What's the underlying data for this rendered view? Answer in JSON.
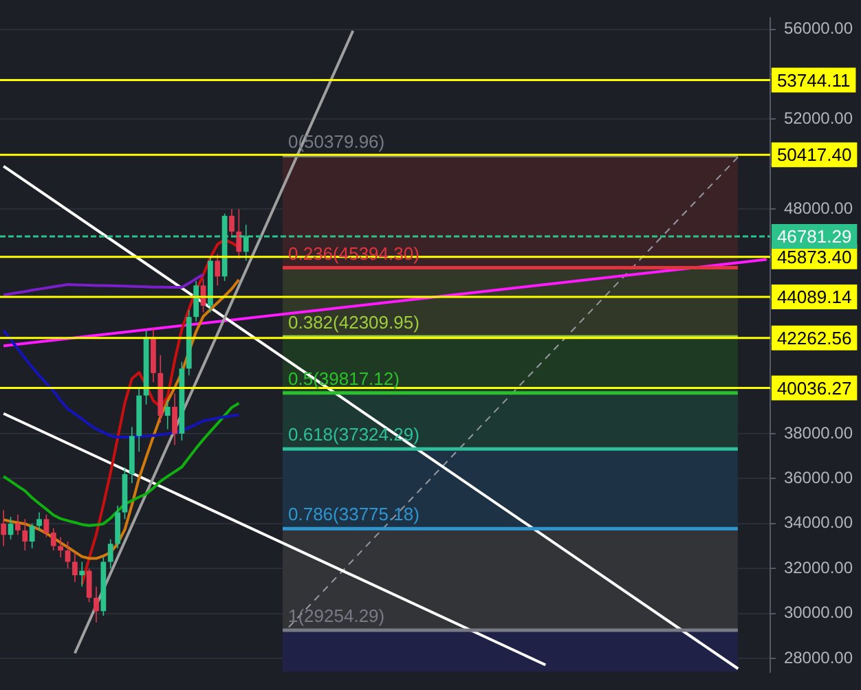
{
  "chart_data": {
    "type": "candlestick",
    "categories": [
      null,
      null,
      null,
      null,
      null,
      null,
      null,
      null,
      null,
      null,
      null,
      null,
      null,
      null,
      null,
      null,
      null,
      null,
      null,
      null,
      null,
      null,
      null,
      null,
      null,
      null,
      null,
      null,
      null,
      null,
      null,
      null,
      null,
      null,
      null,
      null,
      null,
      null,
      null,
      null,
      null,
      null,
      null,
      null,
      null,
      null,
      null,
      null,
      null,
      null,
      null,
      null,
      null,
      null,
      null,
      null,
      null,
      null,
      null,
      null,
      null,
      null,
      null,
      null,
      null,
      null,
      null,
      null,
      null,
      null,
      null,
      null,
      null,
      null,
      null,
      null,
      null,
      null,
      null,
      null,
      null,
      null,
      null,
      null,
      null,
      null,
      null,
      null,
      null,
      null,
      null,
      null,
      null,
      null,
      null,
      null,
      null,
      null,
      null,
      null,
      null,
      null,
      null,
      null,
      null,
      null,
      null,
      null
    ],
    "ohlc": [
      [
        34000,
        34600,
        33000,
        33500
      ],
      [
        33500,
        34300,
        33300,
        34000
      ],
      [
        34000,
        34400,
        33500,
        33700
      ],
      [
        33700,
        34200,
        32800,
        33200
      ],
      [
        33200,
        34000,
        32900,
        33900
      ],
      [
        33900,
        34500,
        33700,
        34200
      ],
      [
        34200,
        34400,
        33400,
        33600
      ],
      [
        33600,
        33800,
        32800,
        33000
      ],
      [
        33000,
        33400,
        32500,
        32800
      ],
      [
        32800,
        33200,
        32000,
        32300
      ],
      [
        32300,
        32700,
        31400,
        31700
      ],
      [
        31700,
        32300,
        31200,
        31900
      ],
      [
        31900,
        32000,
        30500,
        30700
      ],
      [
        30700,
        31200,
        29600,
        30100
      ],
      [
        30100,
        32500,
        29900,
        32300
      ],
      [
        32300,
        33300,
        32000,
        33100
      ],
      [
        33100,
        34800,
        32900,
        34500
      ],
      [
        34500,
        36500,
        34200,
        36200
      ],
      [
        36200,
        38300,
        35800,
        37900
      ],
      [
        37900,
        40000,
        37200,
        39700
      ],
      [
        39700,
        42600,
        39300,
        42300
      ],
      [
        42300,
        42700,
        40300,
        40700
      ],
      [
        40700,
        41500,
        38500,
        38800
      ],
      [
        38800,
        39500,
        38200,
        39200
      ],
      [
        39200,
        39800,
        37500,
        38000
      ],
      [
        38000,
        41200,
        37700,
        40900
      ],
      [
        40900,
        43500,
        40600,
        43200
      ],
      [
        43200,
        44800,
        43000,
        44600
      ],
      [
        44600,
        44900,
        43400,
        43700
      ],
      [
        43700,
        45900,
        43400,
        45700
      ],
      [
        45700,
        46000,
        44600,
        45000
      ],
      [
        45000,
        47800,
        44800,
        47700
      ],
      [
        47700,
        48000,
        46800,
        47000
      ],
      [
        47000,
        48000,
        45800,
        46100
      ],
      [
        46100,
        47300,
        45700,
        46800
      ],
      null,
      null,
      null,
      null,
      null,
      null,
      null,
      null,
      null,
      null,
      null,
      null,
      null,
      null,
      null,
      null,
      null,
      null,
      null,
      null,
      null,
      null,
      null,
      null,
      null,
      null,
      null,
      null,
      null,
      null,
      null,
      null,
      null,
      null,
      null,
      null,
      null,
      null,
      null,
      null,
      null,
      null,
      null,
      null,
      null,
      null,
      null,
      null,
      null,
      null,
      null,
      null,
      null,
      null,
      null,
      null,
      null,
      null,
      null,
      null,
      null,
      null,
      null,
      null,
      null,
      null,
      null,
      null,
      null,
      null,
      null,
      null,
      null
    ],
    "colors": [
      "#e0384f",
      "#2cc28b",
      "#e0384f",
      "#e0384f",
      "#2cc28b",
      "#2cc28b",
      "#e0384f",
      "#e0384f",
      "#e0384f",
      "#e0384f",
      "#e0384f",
      "#2cc28b",
      "#e0384f",
      "#e0384f",
      "#2cc28b",
      "#2cc28b",
      "#2cc28b",
      "#2cc28b",
      "#2cc28b",
      "#2cc28b",
      "#2cc28b",
      "#e0384f",
      "#e0384f",
      "#2cc28b",
      "#e0384f",
      "#2cc28b",
      "#2cc28b",
      "#2cc28b",
      "#e0384f",
      "#2cc28b",
      "#e0384f",
      "#2cc28b",
      "#e0384f",
      "#e0384f",
      "#2cc28b",
      null,
      null,
      null,
      null,
      null,
      null,
      null,
      null,
      null,
      null,
      null,
      null,
      null,
      null,
      null,
      null,
      null,
      null,
      null,
      null,
      null,
      null,
      null,
      null,
      null,
      null,
      null,
      null,
      null,
      null,
      null,
      null,
      null,
      null,
      null,
      null,
      null,
      null,
      null,
      null,
      null,
      null,
      null,
      null,
      null,
      null,
      null,
      null,
      null,
      null,
      null,
      null,
      null,
      null,
      null,
      null,
      null,
      null,
      null,
      null,
      null,
      null,
      null,
      null,
      null,
      null,
      null,
      null,
      null,
      null,
      null,
      null,
      null
    ],
    "series": [
      {
        "type": "line",
        "color": "#7a1fc9",
        "values": [
          44170,
          44230,
          44280,
          44330,
          44390,
          44440,
          44490,
          44540,
          44590,
          44640,
          44630,
          44620,
          44610,
          44600,
          44600,
          44590,
          44580,
          44570,
          44560,
          44550,
          44540,
          44530,
          44530,
          44520,
          44520,
          44520,
          44700,
          44900,
          45090,
          null,
          null,
          null,
          null,
          null,
          null,
          null,
          null,
          null,
          null,
          null,
          null,
          null,
          null,
          null,
          null,
          null,
          null,
          null,
          null,
          null,
          null,
          null,
          null,
          null,
          null,
          null,
          null,
          null,
          null,
          null,
          null,
          null,
          null,
          null,
          null,
          null,
          null,
          null,
          null,
          null,
          null,
          null,
          null,
          null,
          null,
          null,
          null,
          null,
          null,
          null,
          null,
          null,
          null,
          null,
          null,
          null,
          null,
          null,
          null,
          null,
          null,
          null,
          null,
          null,
          null,
          null,
          null,
          null,
          null,
          null,
          null,
          null,
          null,
          null,
          null,
          null,
          null,
          null
        ]
      },
      {
        "type": "line",
        "color": "#1414b8",
        "values": [
          42600,
          42190,
          41780,
          41370,
          40960,
          40600,
          40250,
          39900,
          39480,
          39110,
          38890,
          38660,
          38420,
          38210,
          38060,
          37910,
          37850,
          37850,
          37860,
          37880,
          37900,
          37920,
          37960,
          38000,
          38060,
          38140,
          38270,
          38420,
          38570,
          38630,
          38690,
          38750,
          38800,
          38840,
          null,
          null,
          null,
          null,
          null,
          null,
          null,
          null,
          null,
          null,
          null,
          null,
          null,
          null,
          null,
          null,
          null,
          null,
          null,
          null,
          null,
          null,
          null,
          null,
          null,
          null,
          null,
          null,
          null,
          null,
          null,
          null,
          null,
          null,
          null,
          null,
          null,
          null,
          null,
          null,
          null,
          null,
          null,
          null,
          null,
          null,
          null,
          null,
          null,
          null,
          null,
          null,
          null,
          null,
          null,
          null,
          null,
          null,
          null,
          null,
          null,
          null,
          null,
          null,
          null,
          null,
          null,
          null,
          null,
          null,
          null,
          null,
          null,
          null
        ]
      },
      {
        "type": "line",
        "color": "#10b010",
        "values": [
          36100,
          35890,
          35670,
          35460,
          35150,
          34890,
          34640,
          34380,
          34220,
          34130,
          34050,
          33960,
          33910,
          33940,
          33990,
          34240,
          34560,
          34870,
          35020,
          35180,
          35320,
          35580,
          35880,
          36100,
          36310,
          36520,
          36940,
          37350,
          37740,
          38100,
          38450,
          38810,
          39170,
          39360,
          null,
          null,
          null,
          null,
          null,
          null,
          null,
          null,
          null,
          null,
          null,
          null,
          null,
          null,
          null,
          null,
          null,
          null,
          null,
          null,
          null,
          null,
          null,
          null,
          null,
          null,
          null,
          null,
          null,
          null,
          null,
          null,
          null,
          null,
          null,
          null,
          null,
          null,
          null,
          null,
          null,
          null,
          null,
          null,
          null,
          null,
          null,
          null,
          null,
          null,
          null,
          null,
          null,
          null,
          null,
          null,
          null,
          null,
          null,
          null,
          null,
          null,
          null,
          null,
          null,
          null,
          null,
          null,
          null,
          null,
          null,
          null,
          null,
          null
        ]
      },
      {
        "type": "line",
        "color": "#d07a10",
        "values": [
          34170,
          34100,
          34040,
          33990,
          33870,
          33740,
          33570,
          33360,
          33150,
          32950,
          32740,
          32530,
          32450,
          32450,
          32560,
          32720,
          33110,
          33730,
          34830,
          36020,
          36950,
          37870,
          38750,
          39450,
          40060,
          40720,
          41660,
          42540,
          43220,
          43530,
          43830,
          44130,
          44450,
          44860,
          null,
          null,
          null,
          null,
          null,
          null,
          null,
          null,
          null,
          null,
          null,
          null,
          null,
          null,
          null,
          null,
          null,
          null,
          null,
          null,
          null,
          null,
          null,
          null,
          null,
          null,
          null,
          null,
          null,
          null,
          null,
          null,
          null,
          null,
          null,
          null,
          null,
          null,
          null,
          null,
          null,
          null,
          null,
          null,
          null,
          null,
          null,
          null,
          null,
          null,
          null,
          null,
          null,
          null,
          null,
          null,
          null,
          null,
          null,
          null,
          null,
          null,
          null,
          null,
          null,
          null,
          null,
          null,
          null,
          null,
          null,
          null,
          null,
          null
        ]
      },
      {
        "type": "line",
        "color": "#c81010",
        "values": [
          null,
          null,
          null,
          null,
          null,
          null,
          null,
          null,
          null,
          null,
          null,
          31300,
          32450,
          33520,
          34840,
          36260,
          37800,
          39370,
          40450,
          40730,
          40150,
          39470,
          39190,
          39640,
          41270,
          42650,
          43550,
          44380,
          45070,
          45840,
          46430,
          46630,
          46500,
          46300,
          null,
          null,
          null,
          null,
          null,
          null,
          null,
          null,
          null,
          null,
          null,
          null,
          null,
          null,
          null,
          null,
          null,
          null,
          null,
          null,
          null,
          null,
          null,
          null,
          null,
          null,
          null,
          null,
          null,
          null,
          null,
          null,
          null,
          null,
          null,
          null,
          null,
          null,
          null,
          null,
          null,
          null,
          null,
          null,
          null,
          null,
          null,
          null,
          null,
          null,
          null,
          null,
          null,
          null,
          null,
          null,
          null,
          null,
          null,
          null,
          null,
          null,
          null,
          null,
          null,
          null,
          null,
          null,
          null,
          null,
          null,
          null,
          null,
          null
        ]
      },
      {
        "type": "line",
        "color": "#a0a0a0",
        "values": [
          null,
          null,
          null,
          null,
          null,
          null,
          null,
          null,
          null,
          null,
          28230,
          null,
          null,
          null,
          null,
          null,
          null,
          null,
          null,
          null,
          null,
          null,
          null,
          null,
          null,
          null,
          null,
          null,
          null,
          null,
          null,
          null,
          null,
          null,
          null,
          null,
          null,
          null,
          null,
          null,
          null,
          null,
          null,
          null,
          null,
          null,
          null,
          null,
          null,
          55940,
          null,
          null,
          null,
          null,
          null,
          null,
          null,
          null,
          null,
          null,
          null,
          null,
          null,
          null,
          null,
          null,
          null,
          null,
          null,
          null,
          null,
          null,
          null,
          null,
          null,
          null,
          null,
          null,
          null,
          null,
          null,
          null,
          null,
          null,
          null,
          null,
          null,
          null,
          null,
          null,
          null,
          null,
          null,
          null,
          null,
          null,
          null,
          null,
          null,
          null,
          null,
          null,
          null,
          null,
          null,
          null,
          null,
          null
        ]
      },
      {
        "type": "line",
        "color": "#ffffff",
        "values": [
          49910,
          null,
          null,
          null,
          null,
          null,
          null,
          null,
          null,
          null,
          null,
          null,
          null,
          null,
          null,
          null,
          null,
          null,
          null,
          null,
          null,
          null,
          null,
          null,
          null,
          null,
          null,
          null,
          null,
          null,
          null,
          null,
          null,
          null,
          null,
          null,
          null,
          null,
          null,
          null,
          null,
          null,
          null,
          null,
          null,
          null,
          null,
          null,
          null,
          null,
          null,
          null,
          null,
          null,
          null,
          null,
          null,
          null,
          null,
          null,
          null,
          null,
          null,
          null,
          null,
          null,
          null,
          null,
          null,
          null,
          null,
          null,
          null,
          null,
          null,
          null,
          null,
          null,
          null,
          null,
          null,
          null,
          null,
          null,
          null,
          null,
          null,
          null,
          null,
          null,
          null,
          null,
          null,
          null,
          null,
          null,
          null,
          null,
          null,
          null,
          null,
          null,
          null,
          27540,
          null,
          null,
          null,
          null
        ]
      },
      {
        "type": "line",
        "color": "#ffffff",
        "values": [
          38900,
          null,
          null,
          null,
          null,
          null,
          null,
          null,
          null,
          null,
          null,
          null,
          null,
          null,
          null,
          null,
          null,
          null,
          null,
          null,
          null,
          null,
          null,
          null,
          null,
          null,
          null,
          null,
          null,
          null,
          null,
          null,
          null,
          null,
          null,
          null,
          null,
          null,
          null,
          null,
          null,
          null,
          null,
          null,
          null,
          null,
          null,
          null,
          null,
          null,
          null,
          null,
          null,
          null,
          null,
          null,
          null,
          null,
          null,
          null,
          null,
          null,
          null,
          null,
          null,
          null,
          null,
          null,
          null,
          null,
          null,
          null,
          null,
          null,
          null,
          null,
          27710,
          null,
          null,
          null,
          null,
          null,
          null,
          null,
          null,
          null,
          null,
          null,
          null,
          null,
          null,
          null,
          null,
          null,
          null,
          null,
          null,
          null,
          null,
          null,
          null,
          null,
          null,
          null,
          null,
          null,
          null,
          null
        ]
      },
      {
        "type": "line",
        "color": "#ff1aff",
        "values": [
          41910,
          null,
          null,
          null,
          null,
          null,
          null,
          null,
          null,
          null,
          null,
          null,
          null,
          null,
          null,
          null,
          null,
          null,
          null,
          null,
          null,
          null,
          null,
          null,
          null,
          null,
          null,
          null,
          null,
          null,
          null,
          null,
          null,
          null,
          null,
          null,
          null,
          null,
          null,
          null,
          null,
          null,
          null,
          null,
          null,
          null,
          null,
          null,
          null,
          null,
          null,
          null,
          null,
          null,
          null,
          null,
          null,
          null,
          null,
          null,
          null,
          null,
          null,
          null,
          null,
          null,
          null,
          null,
          null,
          null,
          null,
          null,
          null,
          null,
          null,
          null,
          null,
          null,
          null,
          null,
          null,
          null,
          null,
          null,
          null,
          null,
          null,
          null,
          null,
          null,
          null,
          null,
          null,
          null,
          null,
          null,
          null,
          null,
          null,
          null,
          null,
          null,
          null,
          null,
          null,
          null,
          null,
          45760
        ]
      },
      {
        "type": "line",
        "color": "#9598a1",
        "line_style": "dashed",
        "values": [
          null,
          null,
          null,
          null,
          null,
          null,
          null,
          null,
          null,
          null,
          null,
          null,
          null,
          null,
          null,
          null,
          null,
          null,
          null,
          null,
          null,
          null,
          null,
          null,
          null,
          null,
          null,
          null,
          null,
          null,
          null,
          null,
          null,
          null,
          null,
          null,
          null,
          null,
          null,
          null,
          29390,
          null,
          null,
          null,
          null,
          null,
          null,
          null,
          null,
          null,
          null,
          null,
          null,
          null,
          null,
          null,
          null,
          null,
          null,
          null,
          null,
          null,
          null,
          null,
          null,
          null,
          null,
          null,
          null,
          null,
          null,
          null,
          null,
          null,
          null,
          null,
          null,
          null,
          null,
          null,
          null,
          null,
          null,
          null,
          null,
          null,
          null,
          null,
          null,
          null,
          null,
          null,
          null,
          null,
          null,
          null,
          null,
          null,
          null,
          null,
          null,
          null,
          null,
          50320,
          null,
          null,
          null,
          null
        ]
      }
    ],
    "ylim": [
      27400,
      56500
    ],
    "yticks": [
      {
        "value": 28000,
        "label": "28000.00"
      },
      {
        "value": 30000,
        "label": "30000.00"
      },
      {
        "value": 32000,
        "label": "32000.00"
      },
      {
        "value": 34000,
        "label": "34000.00"
      },
      {
        "value": 36000,
        "label": "36000.00"
      },
      {
        "value": 38000,
        "label": "38000.00"
      },
      {
        "value": 40000,
        "label": null
      },
      {
        "value": 42000,
        "label": null
      },
      {
        "value": 44000,
        "label": null
      },
      {
        "value": 46000,
        "label": null
      },
      {
        "value": 48000,
        "label": "48000.00"
      },
      {
        "value": 50000,
        "label": null
      },
      {
        "value": 52000,
        "label": "52000.00"
      },
      {
        "value": 54000,
        "label": null
      },
      {
        "value": 56000,
        "label": "56000.00"
      }
    ],
    "tick_labels": "y",
    "grid": "y",
    "bands": [
      {
        "axis": "y",
        "from": 45394.3,
        "to": 50379.96,
        "color": "#3a2227",
        "label": "0(50379.96)"
      },
      {
        "axis": "y",
        "from": 42309.95,
        "to": 45394.3,
        "color": "#323827",
        "label": "0.236(45394.30)"
      },
      {
        "axis": "y",
        "from": 39817.12,
        "to": 42309.95,
        "color": "#1f3a22",
        "label": "0.382(42309.95)"
      },
      {
        "axis": "y",
        "from": 37324.29,
        "to": 39817.12,
        "color": "#1c3a33",
        "label": "0.5(39817.12)"
      },
      {
        "axis": "y",
        "from": 33775.18,
        "to": 37324.29,
        "color": "#1d3345",
        "label": "0.618(37324.29)"
      },
      {
        "axis": "y",
        "from": 29254.29,
        "to": 33775.18,
        "color": "#333437",
        "label": "0.786(33775.18)"
      },
      {
        "axis": "y",
        "from": 27400,
        "to": 29254.29,
        "color": "#1f2146",
        "label": "1(29254.29)"
      }
    ],
    "ref_lines": [
      {
        "axis": "y",
        "value": 50379.96,
        "color": "#787b86"
      },
      {
        "axis": "y",
        "value": 45394.3,
        "color": "#e0343e"
      },
      {
        "axis": "y",
        "value": 42309.95,
        "color": "#9ccd3c"
      },
      {
        "axis": "y",
        "value": 39817.12,
        "color": "#2cc02c"
      },
      {
        "axis": "y",
        "value": 37324.29,
        "color": "#2ebf9a"
      },
      {
        "axis": "y",
        "value": 33775.18,
        "color": "#2f95d0"
      },
      {
        "axis": "y",
        "value": 29254.29,
        "color": "#787b86"
      },
      {
        "axis": "y",
        "value": 53744.11,
        "label": "53744.11",
        "color": "#ffff00"
      },
      {
        "axis": "y",
        "value": 50417.4,
        "label": "50417.40",
        "color": "#ffff00"
      },
      {
        "axis": "y",
        "value": 45873.4,
        "label": "45873.40",
        "color": "#ffff00"
      },
      {
        "axis": "y",
        "value": 44089.14,
        "label": "44089.14",
        "color": "#ffff00"
      },
      {
        "axis": "y",
        "value": 42262.56,
        "label": "42262.56",
        "color": "#ffff00"
      },
      {
        "axis": "y",
        "value": 40036.27,
        "label": "40036.27",
        "color": "#ffff00"
      },
      {
        "axis": "y",
        "value": 46781.29,
        "label": "46781.29",
        "color": "#2cc28b",
        "line_style": "dotted"
      }
    ],
    "legend": false
  }
}
